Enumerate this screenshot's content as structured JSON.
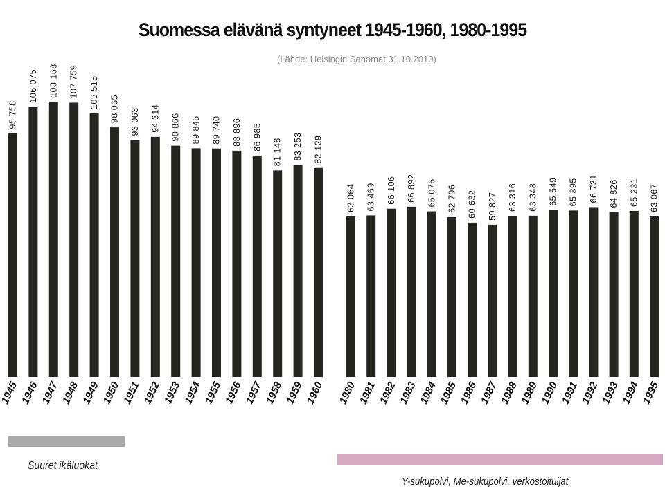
{
  "title": "Suomessa elävänä syntyneet 1945-1960, 1980-1995",
  "subtitle": "(Lähde: Helsingin Sanomat 31.10.2010)",
  "colors": {
    "bar": "#23271f",
    "band_left": "#aaaaaa",
    "band_right": "#d6a8c2"
  },
  "chart_data": [
    {
      "type": "bar",
      "title": "",
      "xlabel": "",
      "ylabel": "",
      "categories": [
        "1945",
        "1946",
        "1947",
        "1948",
        "1949",
        "1950",
        "1951",
        "1952",
        "1953",
        "1954",
        "1955",
        "1956",
        "1957",
        "1958",
        "1959",
        "1960"
      ],
      "values": [
        95758,
        106075,
        108168,
        107759,
        103515,
        98065,
        93063,
        94314,
        90866,
        89845,
        89740,
        88896,
        86985,
        81148,
        83253,
        82129
      ],
      "value_labels": [
        "95 758",
        "106 075",
        "108 168",
        "107 759",
        "103 515",
        "98 065",
        "93 063",
        "94 314",
        "90 866",
        "89 845",
        "89 740",
        "88 896",
        "86 985",
        "81 148",
        "83 253",
        "82 129"
      ],
      "caption": "Suuret ikäluokat",
      "ylim": [
        0,
        120000
      ]
    },
    {
      "type": "bar",
      "title": "",
      "xlabel": "",
      "ylabel": "",
      "categories": [
        "1980",
        "1981",
        "1982",
        "1983",
        "1984",
        "1985",
        "1986",
        "1987",
        "1988",
        "1989",
        "1990",
        "1991",
        "1992",
        "1993",
        "1994",
        "1995"
      ],
      "values": [
        63064,
        63469,
        66106,
        66892,
        65076,
        62796,
        60632,
        59827,
        63316,
        63348,
        65549,
        65395,
        66731,
        64826,
        65231,
        63067
      ],
      "value_labels": [
        "63 064",
        "63 469",
        "66 106",
        "66 892",
        "65 076",
        "62 796",
        "60 632",
        "59 827",
        "63 316",
        "63 348",
        "65 549",
        "65 395",
        "66 731",
        "64 826",
        "65 231",
        "63 067"
      ],
      "caption": "Y-sukupolvi, Me-sukupolvi, verkostoituijat",
      "ylim": [
        0,
        120000
      ]
    }
  ]
}
